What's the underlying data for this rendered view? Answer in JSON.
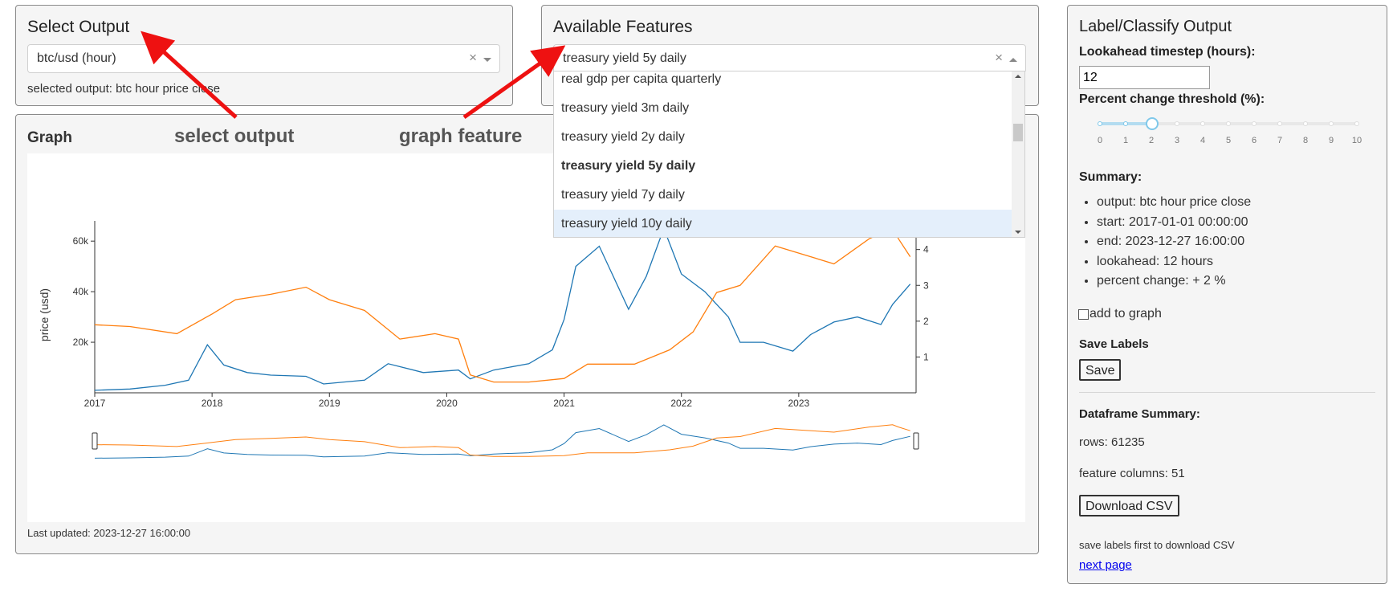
{
  "select_output": {
    "title": "Select Output",
    "value": "btc/usd (hour)",
    "clear": "×",
    "selected_text": "selected output: btc hour price close"
  },
  "features": {
    "title": "Available Features",
    "value": "treasury yield 5y daily",
    "clear": "×",
    "options": [
      "real gdp per capita quarterly",
      "treasury yield 3m daily",
      "treasury yield 2y daily",
      "treasury yield 5y daily",
      "treasury yield 7y daily",
      "treasury yield 10y daily"
    ],
    "selected_option": "treasury yield 5y daily",
    "hovered_option": "treasury yield 10y daily"
  },
  "annotations": {
    "select_output": "select output",
    "graph_feature": "graph feature"
  },
  "graph": {
    "title": "Graph",
    "last_updated": "Last updated: 2023-12-27 16:00:00"
  },
  "chart_data": {
    "type": "line",
    "ylabel": "price (usd)",
    "x_ticks": [
      "2017",
      "2018",
      "2019",
      "2020",
      "2021",
      "2022",
      "2023"
    ],
    "y_ticks_left": [
      "20k",
      "40k",
      "60k"
    ],
    "y_ticks_right": [
      "1",
      "2",
      "3",
      "4"
    ],
    "series": [
      {
        "name": "btc hour price close",
        "axis": "left",
        "color": "#1f77b4",
        "x": [
          2017.0,
          2017.3,
          2017.6,
          2017.8,
          2017.96,
          2018.1,
          2018.3,
          2018.5,
          2018.8,
          2018.95,
          2019.3,
          2019.5,
          2019.8,
          2020.1,
          2020.2,
          2020.4,
          2020.7,
          2020.9,
          2021.0,
          2021.1,
          2021.3,
          2021.55,
          2021.7,
          2021.85,
          2022.0,
          2022.2,
          2022.4,
          2022.5,
          2022.7,
          2022.95,
          2023.1,
          2023.3,
          2023.5,
          2023.7,
          2023.8,
          2023.95
        ],
        "y": [
          1000,
          1500,
          3000,
          5000,
          19000,
          11000,
          8000,
          7000,
          6500,
          3500,
          5000,
          11500,
          8000,
          9000,
          5500,
          9000,
          11500,
          17000,
          29000,
          50000,
          58000,
          33000,
          46000,
          65000,
          47000,
          40000,
          30000,
          20000,
          20000,
          16500,
          23000,
          28000,
          30000,
          27000,
          35000,
          43000
        ]
      },
      {
        "name": "treasury yield 5y daily",
        "axis": "right",
        "color": "#ff7f0e",
        "x": [
          2017.0,
          2017.3,
          2017.7,
          2018.0,
          2018.2,
          2018.5,
          2018.8,
          2019.0,
          2019.3,
          2019.6,
          2019.9,
          2020.1,
          2020.2,
          2020.4,
          2020.7,
          2021.0,
          2021.2,
          2021.6,
          2021.9,
          2022.1,
          2022.3,
          2022.5,
          2022.8,
          2023.0,
          2023.3,
          2023.6,
          2023.8,
          2023.85,
          2023.95
        ],
        "y": [
          1.9,
          1.85,
          1.65,
          2.2,
          2.6,
          2.75,
          2.95,
          2.6,
          2.3,
          1.5,
          1.65,
          1.5,
          0.5,
          0.3,
          0.3,
          0.4,
          0.8,
          0.8,
          1.2,
          1.7,
          2.8,
          3.0,
          4.1,
          3.9,
          3.6,
          4.3,
          4.6,
          4.3,
          3.8
        ]
      }
    ],
    "x_range": [
      2017,
      2024
    ],
    "y_left_range": [
      0,
      68000
    ],
    "y_right_range": [
      0,
      4.8
    ]
  },
  "right_panel": {
    "title": "Label/Classify Output",
    "lookahead_label": "Lookahead timestep (hours):",
    "lookahead_value": "12",
    "threshold_label": "Percent change threshold (%):",
    "slider_ticks": [
      "0",
      "1",
      "2",
      "3",
      "4",
      "5",
      "6",
      "7",
      "8",
      "9",
      "10"
    ],
    "slider_value": 2,
    "slider_max": 10,
    "summary_label": "Summary:",
    "summary": [
      "output: btc hour price close",
      "start: 2017-01-01 00:00:00",
      "end: 2023-12-27 16:00:00",
      "lookahead: 12 hours",
      "percent change: + 2 %"
    ],
    "add_to_graph": "add to graph",
    "save_labels_heading": "Save Labels",
    "save_button": "Save",
    "df_summary_label": "Dataframe Summary:",
    "rows": "rows: 61235",
    "feature_columns": "feature columns: 51",
    "download_button": "Download CSV",
    "download_note": "save labels first to download CSV",
    "next_page": "next page"
  },
  "colors": {
    "btc": "#1f77b4",
    "yield": "#ff7f0e",
    "arrow": "#ee1111",
    "highlight": "#e4effb"
  }
}
